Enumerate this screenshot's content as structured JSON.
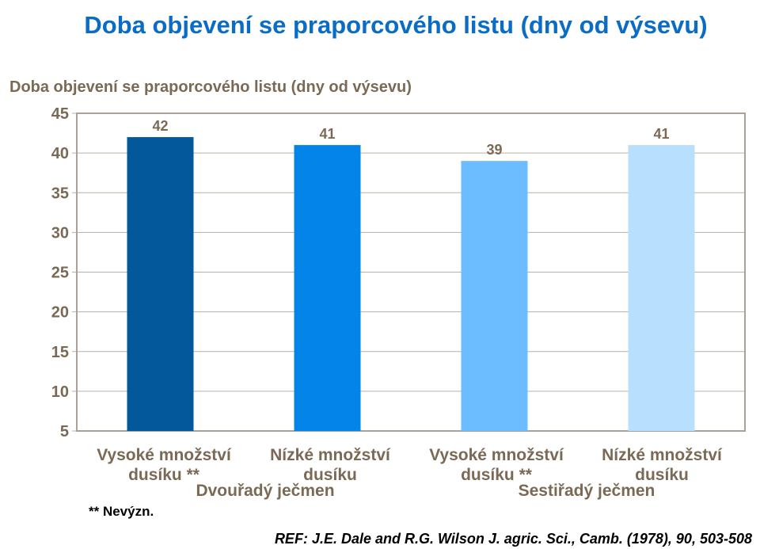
{
  "chart_data": {
    "type": "bar",
    "title": "Doba objevení se praporcového listu (dny od výsevu)",
    "ylabel": "Doba objevení se praporcového listu (dny od výsevu)",
    "xlabel": "",
    "categories": [
      "Vysoké množství dusíku **",
      "Nízké množství dusíku",
      "Vysoké množství dusíku **",
      "Nízké množství dusíku"
    ],
    "category_lines": [
      [
        "Vysoké množství",
        "dusíku **"
      ],
      [
        "Nízké množství",
        "dusíku"
      ],
      [
        "Vysoké množství",
        "dusíku **"
      ],
      [
        "Nízké množství",
        "dusíku"
      ]
    ],
    "groups": [
      "Dvouřadý ječmen",
      "Sestiřadý ječmen"
    ],
    "values": [
      42,
      41,
      39,
      41
    ],
    "data_labels": [
      "42",
      "41",
      "39",
      "41"
    ],
    "colors": [
      "#02589a",
      "#0284e8",
      "#6bbdff",
      "#b9dfff"
    ],
    "ylim": [
      5,
      45
    ],
    "yticks": [
      5,
      10,
      15,
      20,
      25,
      30,
      35,
      40,
      45
    ],
    "grid": true
  },
  "footnote": "** Nevýzn.",
  "reference": "REF: J.E. Dale and R.G. Wilson J. agric. Sci., Camb. (1978), 90, 503-508"
}
